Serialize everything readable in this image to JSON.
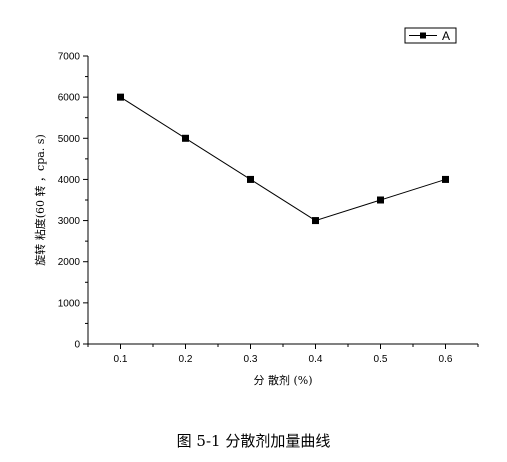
{
  "caption": "图 5-1 分散剂加量曲线",
  "chart_data": {
    "type": "line",
    "title": "",
    "xlabel": "分 散剂 (%)",
    "ylabel": "旋转 粘度(60 转 ，cpa. s)",
    "x": [
      0.1,
      0.2,
      0.3,
      0.4,
      0.5,
      0.6
    ],
    "x_ticks": [
      "0.1",
      "0.2",
      "0.3",
      "0.4",
      "0.5",
      "0.6"
    ],
    "y_ticks": [
      0,
      1000,
      2000,
      3000,
      4000,
      5000,
      6000,
      7000
    ],
    "xlim": [
      0.05,
      0.65
    ],
    "ylim": [
      0,
      7000
    ],
    "grid": false,
    "legend_position": "top-right",
    "series": [
      {
        "name": "A",
        "values": [
          6000,
          5000,
          4000,
          3000,
          3500,
          4000
        ],
        "color": "#000000",
        "marker": "square"
      }
    ]
  }
}
